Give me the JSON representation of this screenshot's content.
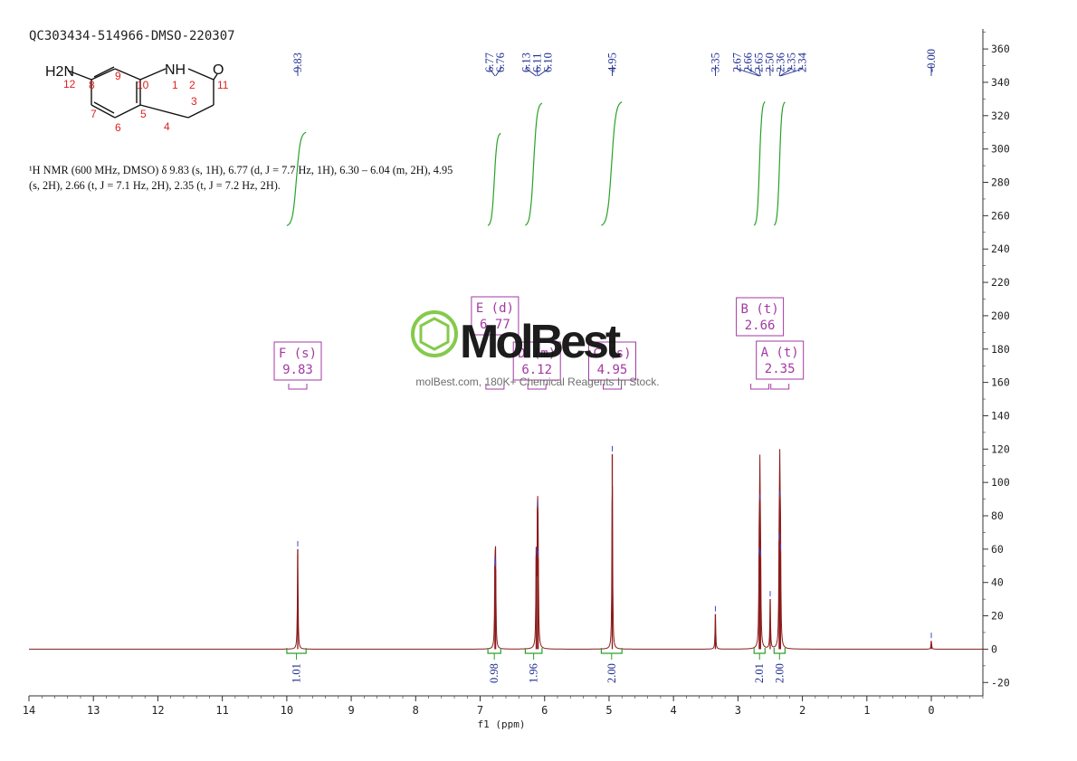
{
  "sample_id": "QC303434-514966-DMSO-220307",
  "description_line1": "¹H NMR (600 MHz, DMSO) δ 9.83 (s, 1H), 6.77 (d, J = 7.7 Hz, 1H), 6.30 – 6.04 (m, 2H), 4.95",
  "description_line2": "(s, 2H), 2.66 (t, J = 7.1 Hz, 2H), 2.35 (t, J = 7.2 Hz, 2H).",
  "watermark": {
    "brand": "MolBest",
    "tagline": "molBest.com, 180K+ Chemical Reagents In Stock."
  },
  "structure": {
    "groups": [
      "H2N",
      "NH",
      "O"
    ],
    "atom_numbers": [
      "12",
      "8",
      "9",
      "10",
      "1",
      "2",
      "11",
      "7",
      "5",
      "3",
      "6",
      "4"
    ]
  },
  "chart_data": {
    "type": "line",
    "title": "",
    "xlabel": "f1 (ppm)",
    "ylabel": "",
    "xlim": [
      14,
      -0.8
    ],
    "ylim": [
      -28,
      372
    ],
    "x_reversed": true,
    "x_ticks": [
      14,
      13,
      12,
      11,
      10,
      9,
      8,
      7,
      6,
      5,
      4,
      3,
      2,
      1,
      0
    ],
    "y_ticks": [
      -20,
      0,
      20,
      40,
      60,
      80,
      100,
      120,
      140,
      160,
      180,
      200,
      220,
      240,
      260,
      280,
      300,
      320,
      340,
      360
    ],
    "y_axis_side": "right",
    "grid": false,
    "colors": {
      "spectrum": "#8b1a1a",
      "peak_labels": "#1f2d8f",
      "integrals": "#2aa12a",
      "multiplet_boxes": "#a33aa3",
      "axis": "#333333"
    },
    "peaks": [
      {
        "ppm": 9.83,
        "height": 60
      },
      {
        "ppm": 6.77,
        "height": 50
      },
      {
        "ppm": 6.76,
        "height": 48
      },
      {
        "ppm": 6.13,
        "height": 56
      },
      {
        "ppm": 6.11,
        "height": 84
      },
      {
        "ppm": 6.1,
        "height": 54
      },
      {
        "ppm": 4.95,
        "height": 117
      },
      {
        "ppm": 3.35,
        "height": 21
      },
      {
        "ppm": 2.67,
        "height": 56
      },
      {
        "ppm": 2.66,
        "height": 88
      },
      {
        "ppm": 2.65,
        "height": 54
      },
      {
        "ppm": 2.5,
        "height": 30
      },
      {
        "ppm": 2.36,
        "height": 64
      },
      {
        "ppm": 2.35,
        "height": 90
      },
      {
        "ppm": 2.34,
        "height": 58
      },
      {
        "ppm": 0.0,
        "height": 5
      }
    ],
    "peak_labels": [
      "9.83",
      "6.77",
      "6.76",
      "6.13",
      "6.11",
      "6.10",
      "4.95",
      "3.35",
      "2.67",
      "2.66",
      "2.65",
      "2.50",
      "2.36",
      "2.35",
      "2.34",
      "-0.00"
    ],
    "integrals": [
      {
        "from": 10.0,
        "to": 9.7,
        "value": "1.01"
      },
      {
        "from": 6.88,
        "to": 6.68,
        "value": "0.98"
      },
      {
        "from": 6.3,
        "to": 6.04,
        "value": "1.96"
      },
      {
        "from": 5.12,
        "to": 4.8,
        "value": "2.00"
      },
      {
        "from": 2.75,
        "to": 2.58,
        "value": "2.01"
      },
      {
        "from": 2.44,
        "to": 2.27,
        "value": "2.00"
      }
    ],
    "multiplets": [
      {
        "label": "F (s)",
        "value": "9.83",
        "ppm": 9.83
      },
      {
        "label": "E (d)",
        "value": "6.77",
        "ppm": 6.77
      },
      {
        "label": "D (m)",
        "value": "6.12",
        "ppm": 6.12
      },
      {
        "label": "C (s)",
        "value": "4.95",
        "ppm": 4.95
      },
      {
        "label": "B (t)",
        "value": "2.66",
        "ppm": 2.66
      },
      {
        "label": "A (t)",
        "value": "2.35",
        "ppm": 2.35
      }
    ]
  }
}
